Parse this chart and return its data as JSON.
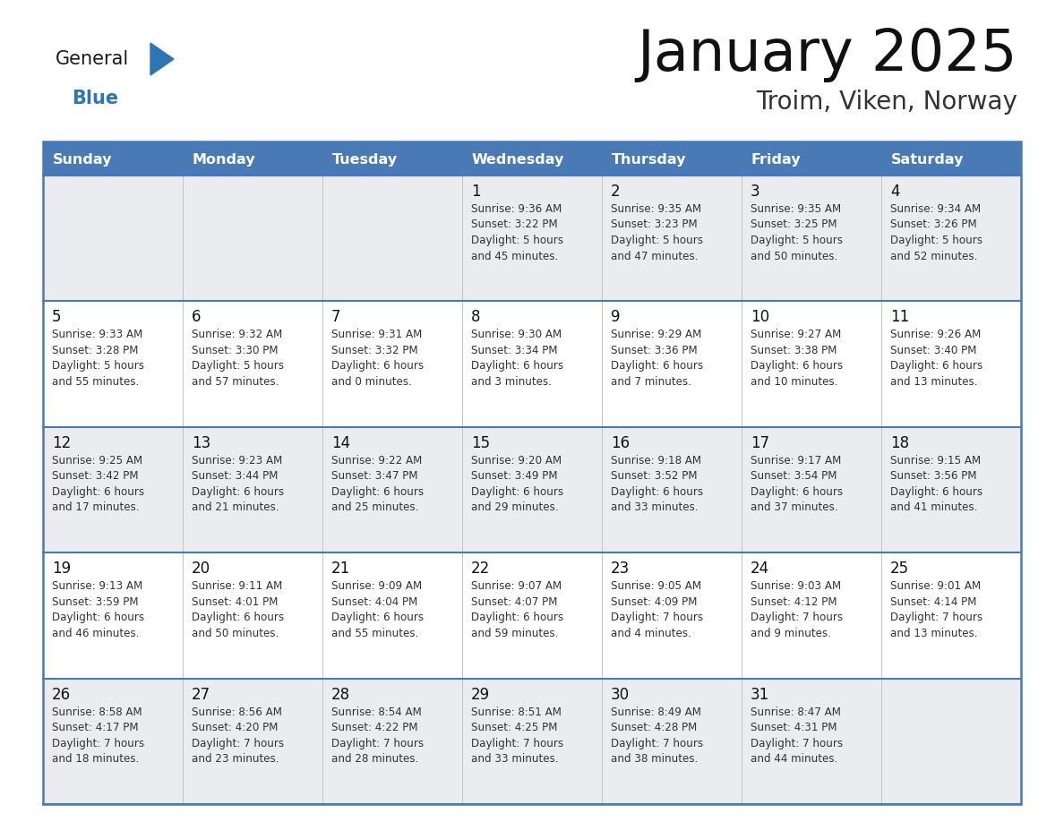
{
  "title": "January 2025",
  "subtitle": "Troim, Viken, Norway",
  "header_bg": "#4a7ab5",
  "header_text_color": "#FFFFFF",
  "cell_bg_even": "#EAECF0",
  "cell_bg_odd": "#FFFFFF",
  "row_sep_color": "#4a7ab5",
  "col_sep_color": "#BBBBBB",
  "outer_border_color": "#4a7ab5",
  "text_color": "#333333",
  "day_num_color": "#111111",
  "day_headers": [
    "Sunday",
    "Monday",
    "Tuesday",
    "Wednesday",
    "Thursday",
    "Friday",
    "Saturday"
  ],
  "logo_general_color": "#1a1a1a",
  "logo_blue_color": "#2E75B6",
  "logo_triangle_color": "#2E75B6",
  "calendar": [
    [
      {
        "day": "",
        "info": ""
      },
      {
        "day": "",
        "info": ""
      },
      {
        "day": "",
        "info": ""
      },
      {
        "day": "1",
        "info": "Sunrise: 9:36 AM\nSunset: 3:22 PM\nDaylight: 5 hours\nand 45 minutes."
      },
      {
        "day": "2",
        "info": "Sunrise: 9:35 AM\nSunset: 3:23 PM\nDaylight: 5 hours\nand 47 minutes."
      },
      {
        "day": "3",
        "info": "Sunrise: 9:35 AM\nSunset: 3:25 PM\nDaylight: 5 hours\nand 50 minutes."
      },
      {
        "day": "4",
        "info": "Sunrise: 9:34 AM\nSunset: 3:26 PM\nDaylight: 5 hours\nand 52 minutes."
      }
    ],
    [
      {
        "day": "5",
        "info": "Sunrise: 9:33 AM\nSunset: 3:28 PM\nDaylight: 5 hours\nand 55 minutes."
      },
      {
        "day": "6",
        "info": "Sunrise: 9:32 AM\nSunset: 3:30 PM\nDaylight: 5 hours\nand 57 minutes."
      },
      {
        "day": "7",
        "info": "Sunrise: 9:31 AM\nSunset: 3:32 PM\nDaylight: 6 hours\nand 0 minutes."
      },
      {
        "day": "8",
        "info": "Sunrise: 9:30 AM\nSunset: 3:34 PM\nDaylight: 6 hours\nand 3 minutes."
      },
      {
        "day": "9",
        "info": "Sunrise: 9:29 AM\nSunset: 3:36 PM\nDaylight: 6 hours\nand 7 minutes."
      },
      {
        "day": "10",
        "info": "Sunrise: 9:27 AM\nSunset: 3:38 PM\nDaylight: 6 hours\nand 10 minutes."
      },
      {
        "day": "11",
        "info": "Sunrise: 9:26 AM\nSunset: 3:40 PM\nDaylight: 6 hours\nand 13 minutes."
      }
    ],
    [
      {
        "day": "12",
        "info": "Sunrise: 9:25 AM\nSunset: 3:42 PM\nDaylight: 6 hours\nand 17 minutes."
      },
      {
        "day": "13",
        "info": "Sunrise: 9:23 AM\nSunset: 3:44 PM\nDaylight: 6 hours\nand 21 minutes."
      },
      {
        "day": "14",
        "info": "Sunrise: 9:22 AM\nSunset: 3:47 PM\nDaylight: 6 hours\nand 25 minutes."
      },
      {
        "day": "15",
        "info": "Sunrise: 9:20 AM\nSunset: 3:49 PM\nDaylight: 6 hours\nand 29 minutes."
      },
      {
        "day": "16",
        "info": "Sunrise: 9:18 AM\nSunset: 3:52 PM\nDaylight: 6 hours\nand 33 minutes."
      },
      {
        "day": "17",
        "info": "Sunrise: 9:17 AM\nSunset: 3:54 PM\nDaylight: 6 hours\nand 37 minutes."
      },
      {
        "day": "18",
        "info": "Sunrise: 9:15 AM\nSunset: 3:56 PM\nDaylight: 6 hours\nand 41 minutes."
      }
    ],
    [
      {
        "day": "19",
        "info": "Sunrise: 9:13 AM\nSunset: 3:59 PM\nDaylight: 6 hours\nand 46 minutes."
      },
      {
        "day": "20",
        "info": "Sunrise: 9:11 AM\nSunset: 4:01 PM\nDaylight: 6 hours\nand 50 minutes."
      },
      {
        "day": "21",
        "info": "Sunrise: 9:09 AM\nSunset: 4:04 PM\nDaylight: 6 hours\nand 55 minutes."
      },
      {
        "day": "22",
        "info": "Sunrise: 9:07 AM\nSunset: 4:07 PM\nDaylight: 6 hours\nand 59 minutes."
      },
      {
        "day": "23",
        "info": "Sunrise: 9:05 AM\nSunset: 4:09 PM\nDaylight: 7 hours\nand 4 minutes."
      },
      {
        "day": "24",
        "info": "Sunrise: 9:03 AM\nSunset: 4:12 PM\nDaylight: 7 hours\nand 9 minutes."
      },
      {
        "day": "25",
        "info": "Sunrise: 9:01 AM\nSunset: 4:14 PM\nDaylight: 7 hours\nand 13 minutes."
      }
    ],
    [
      {
        "day": "26",
        "info": "Sunrise: 8:58 AM\nSunset: 4:17 PM\nDaylight: 7 hours\nand 18 minutes."
      },
      {
        "day": "27",
        "info": "Sunrise: 8:56 AM\nSunset: 4:20 PM\nDaylight: 7 hours\nand 23 minutes."
      },
      {
        "day": "28",
        "info": "Sunrise: 8:54 AM\nSunset: 4:22 PM\nDaylight: 7 hours\nand 28 minutes."
      },
      {
        "day": "29",
        "info": "Sunrise: 8:51 AM\nSunset: 4:25 PM\nDaylight: 7 hours\nand 33 minutes."
      },
      {
        "day": "30",
        "info": "Sunrise: 8:49 AM\nSunset: 4:28 PM\nDaylight: 7 hours\nand 38 minutes."
      },
      {
        "day": "31",
        "info": "Sunrise: 8:47 AM\nSunset: 4:31 PM\nDaylight: 7 hours\nand 44 minutes."
      },
      {
        "day": "",
        "info": ""
      }
    ]
  ]
}
